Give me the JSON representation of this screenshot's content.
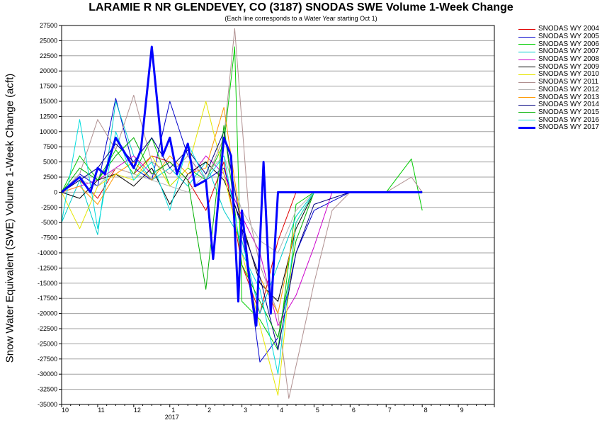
{
  "chart_data": {
    "type": "line",
    "title": "LARAMIE R NR GLENDEVEY, CO (3187) SNODAS SWE Volume 1-Week Change",
    "subtitle": "(Each line corresponds to a Water Year starting Oct 1)",
    "ylabel": "Snow Water Equivalent (SWE) Volume 1-Week Change (acft)",
    "xlabel": "",
    "ylim": [
      -35000,
      27500
    ],
    "y_ticks": [
      27500,
      25000,
      22500,
      20000,
      17500,
      15000,
      12500,
      10000,
      7500,
      5000,
      2500,
      0,
      -2500,
      -5000,
      -7500,
      -10000,
      -12500,
      -15000,
      -17500,
      -20000,
      -22500,
      -25000,
      -27500,
      -30000,
      -32500,
      -35000
    ],
    "x_month_start": 10,
    "x_tick_labels": [
      "10",
      "11",
      "12",
      "1",
      "2",
      "3",
      "4",
      "5",
      "6",
      "7",
      "8",
      "9"
    ],
    "x_sub_label": "2017",
    "grid": true,
    "legend_position": "right-top",
    "series": [
      {
        "name": "SNODAS WY 2004",
        "color": "#e00000",
        "width": 1,
        "x": [
          0,
          0.5,
          1,
          1.5,
          2,
          2.5,
          3,
          3.5,
          4,
          4.5,
          5,
          5.5,
          6,
          6.5,
          7,
          8,
          9,
          10
        ],
        "y": [
          0,
          2000,
          -1000,
          4000,
          3000,
          6000,
          5000,
          2000,
          -3000,
          5000,
          -12000,
          -20000,
          -8000,
          0,
          0,
          0,
          0,
          0
        ]
      },
      {
        "name": "SNODAS WY 2005",
        "color": "#0000cc",
        "width": 1,
        "x": [
          0,
          0.5,
          1,
          1.5,
          2,
          2.5,
          3,
          3.5,
          4,
          4.5,
          5,
          5.5,
          6,
          6.5,
          7,
          8,
          9,
          10
        ],
        "y": [
          0,
          3000,
          1000,
          15500,
          4000,
          2000,
          15000,
          6000,
          2000,
          4000,
          -6000,
          -28000,
          -24000,
          -10000,
          -3000,
          0,
          0,
          0
        ]
      },
      {
        "name": "SNODAS WY 2006",
        "color": "#00cc00",
        "width": 1,
        "x": [
          0,
          0.5,
          1,
          1.5,
          2,
          2.5,
          3,
          3.5,
          4,
          4.5,
          4.8,
          5,
          5.5,
          6,
          6.5,
          7,
          8,
          9,
          9.7,
          10
        ],
        "y": [
          0,
          6000,
          2000,
          7000,
          3000,
          9000,
          1000,
          4000,
          2000,
          8000,
          24000,
          -18000,
          -21000,
          -26000,
          -2000,
          0,
          0,
          0,
          5500,
          -3000
        ]
      },
      {
        "name": "SNODAS WY 2007",
        "color": "#00cccc",
        "width": 1,
        "x": [
          0,
          0.5,
          1,
          1.5,
          2,
          2.5,
          3,
          3.5,
          4,
          4.5,
          5,
          5.5,
          6,
          6.5,
          7,
          8,
          9,
          10
        ],
        "y": [
          -5000,
          2000,
          -7000,
          15000,
          6000,
          2000,
          4000,
          1000,
          5000,
          -3000,
          -8000,
          -20000,
          -12000,
          -4000,
          0,
          0,
          0,
          0
        ]
      },
      {
        "name": "SNODAS WY 2008",
        "color": "#cc00cc",
        "width": 1,
        "x": [
          0,
          0.5,
          1,
          1.5,
          2,
          2.5,
          3,
          3.5,
          4,
          4.5,
          5,
          5.5,
          6,
          6.5,
          7,
          7.5,
          8,
          9,
          10
        ],
        "y": [
          0,
          1000,
          2000,
          4000,
          6000,
          3000,
          5000,
          2000,
          6000,
          3000,
          -4000,
          -10000,
          -22000,
          -17000,
          -9000,
          0,
          0,
          0,
          0
        ]
      },
      {
        "name": "SNODAS WY 2009",
        "color": "#000000",
        "width": 1,
        "x": [
          0,
          0.5,
          1,
          1.5,
          2,
          2.5,
          3,
          3.5,
          4,
          4.5,
          5,
          5.5,
          6,
          6.5,
          7,
          8,
          9,
          10
        ],
        "y": [
          0,
          -1000,
          2000,
          3000,
          1000,
          4000,
          -2000,
          3000,
          5000,
          2000,
          -5000,
          -15000,
          -18000,
          -6000,
          0,
          0,
          0,
          0
        ]
      },
      {
        "name": "SNODAS WY 2010",
        "color": "#e6e600",
        "width": 1,
        "x": [
          0,
          0.5,
          1,
          1.5,
          2,
          2.5,
          3,
          3.5,
          4,
          4.5,
          5,
          5.5,
          6,
          6.5,
          7,
          8,
          9,
          10
        ],
        "y": [
          0,
          -6000,
          1000,
          3000,
          2000,
          6000,
          1000,
          4000,
          15000,
          3000,
          -10000,
          -22000,
          -33500,
          -5000,
          0,
          0,
          0,
          0
        ]
      },
      {
        "name": "SNODAS WY 2011",
        "color": "#b09090",
        "width": 1,
        "x": [
          0,
          0.5,
          1,
          1.5,
          2,
          2.5,
          3,
          3.5,
          4,
          4.5,
          4.8,
          5.2,
          5.5,
          6,
          6.3,
          6.6,
          7,
          7.5,
          8,
          9,
          9.7,
          10
        ],
        "y": [
          0,
          3000,
          12000,
          7000,
          16000,
          5000,
          3000,
          6000,
          2000,
          9000,
          27000,
          -4000,
          -12000,
          -20000,
          -34000,
          -26000,
          -15000,
          -3000,
          0,
          0,
          2500,
          0
        ]
      },
      {
        "name": "SNODAS WY 2012",
        "color": "#b4b4b4",
        "width": 1,
        "x": [
          0,
          0.5,
          1,
          1.5,
          2,
          2.5,
          3,
          3.5,
          4,
          4.5,
          5,
          5.5,
          6,
          6.5,
          7,
          8,
          9,
          10
        ],
        "y": [
          0,
          2000,
          1000,
          4000,
          3000,
          2000,
          1000,
          0,
          3000,
          6000,
          -3000,
          -8000,
          -10000,
          -3000,
          0,
          0,
          0,
          0
        ]
      },
      {
        "name": "SNODAS WY 2013",
        "color": "#ff9900",
        "width": 1,
        "x": [
          0,
          0.5,
          1,
          1.5,
          2,
          2.5,
          3,
          3.5,
          4,
          4.5,
          5,
          5.5,
          6,
          6.5,
          7,
          8,
          9,
          10
        ],
        "y": [
          0,
          1000,
          -2000,
          3000,
          5000,
          2000,
          6000,
          3000,
          4000,
          14000,
          -6000,
          -14000,
          -20000,
          -5000,
          0,
          0,
          0,
          0
        ]
      },
      {
        "name": "SNODAS WY 2014",
        "color": "#000080",
        "width": 1,
        "x": [
          0,
          0.5,
          1,
          1.5,
          2,
          2.5,
          3,
          3.5,
          4,
          4.5,
          5,
          5.5,
          6,
          6.5,
          7,
          8,
          9,
          10
        ],
        "y": [
          0,
          2000,
          4000,
          8000,
          5000,
          9000,
          4000,
          7000,
          3000,
          10000,
          -6000,
          -14000,
          -26000,
          -10000,
          -2000,
          0,
          0,
          0
        ]
      },
      {
        "name": "SNODAS WY 2015",
        "color": "#00b000",
        "width": 1,
        "x": [
          0,
          0.5,
          1,
          1.5,
          2,
          2.5,
          3,
          3.5,
          4,
          4.5,
          5,
          5.5,
          6,
          6.5,
          7,
          8,
          9,
          10
        ],
        "y": [
          0,
          4000,
          2000,
          6000,
          9000,
          3000,
          5000,
          2000,
          -16000,
          11000,
          -12000,
          -18000,
          -24000,
          -8000,
          0,
          0,
          0,
          0
        ]
      },
      {
        "name": "SNODAS WY 2016",
        "color": "#00dddd",
        "width": 1,
        "x": [
          0,
          0.5,
          1,
          1.5,
          2,
          2.5,
          3,
          3.5,
          4,
          4.5,
          5,
          5.5,
          6,
          6.5,
          7,
          8,
          9,
          10
        ],
        "y": [
          -5000,
          12000,
          -6000,
          10000,
          2000,
          5000,
          -3000,
          8000,
          2000,
          6000,
          -10000,
          -16000,
          -30000,
          -5000,
          0,
          0,
          0,
          0
        ]
      },
      {
        "name": "SNODAS WY 2017",
        "color": "#0000ff",
        "width": 3,
        "x": [
          0,
          0.2,
          0.5,
          0.8,
          1,
          1.2,
          1.5,
          1.7,
          2,
          2.2,
          2.5,
          2.8,
          3,
          3.2,
          3.5,
          3.7,
          4,
          4.2,
          4.5,
          4.7,
          4.9,
          5,
          5.2,
          5.4,
          5.6,
          5.8,
          6,
          6.2,
          6.5,
          7,
          8,
          9,
          10
        ],
        "y": [
          0,
          1000,
          2500,
          0,
          4000,
          3000,
          9000,
          7000,
          4000,
          7000,
          24000,
          6000,
          9000,
          3000,
          8000,
          1000,
          2000,
          -11000,
          9000,
          6000,
          -18000,
          -3000,
          -14000,
          -22000,
          5000,
          -20000,
          0,
          0,
          0,
          0,
          0,
          0,
          0
        ]
      }
    ]
  }
}
